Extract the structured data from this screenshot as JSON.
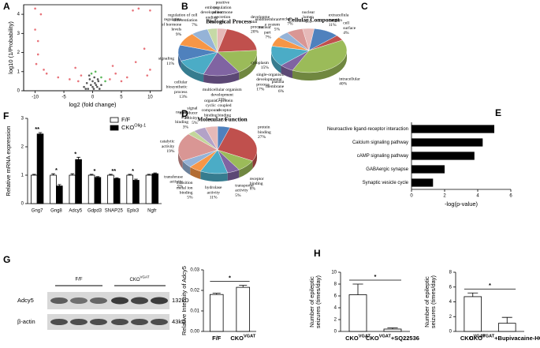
{
  "chart_data": [
    {
      "type": "scatter",
      "panel": "A",
      "xlabel": "log2 (fold change)",
      "ylabel": "log10 (1/Probability)",
      "xlim": [
        -12,
        12
      ],
      "xticks": [
        -10,
        -5,
        0,
        5,
        10
      ],
      "ylim": [
        0,
        4.5
      ],
      "yticks": [
        0,
        1,
        2,
        3,
        4
      ],
      "series": [
        {
          "color": "#e8737a",
          "x": [
            -10,
            -10,
            -9.5,
            -9.5,
            -9.8,
            -9,
            -8.5,
            -8,
            -6,
            -4,
            -3,
            -2.5,
            -2,
            3,
            3.5,
            4,
            5,
            6,
            7,
            7.5,
            8,
            9,
            9.5,
            10,
            10
          ],
          "values": [
            4.3,
            3.2,
            2.6,
            1.9,
            1.4,
            4.0,
            1.1,
            0.9,
            0.7,
            0.6,
            1.2,
            0.5,
            0.8,
            0.6,
            1.3,
            0.9,
            0.5,
            0.7,
            4.2,
            1.5,
            4.3,
            2.2,
            0.8,
            4.2,
            1.1
          ]
        },
        {
          "color": "#555555",
          "x": [
            -1.5,
            -1,
            -0.8,
            -0.5,
            -0.3,
            0,
            0,
            0.2,
            0.4,
            0.6,
            0.8,
            1,
            1.2,
            1.5,
            -1.2,
            0.3,
            -0.6,
            0.9
          ],
          "values": [
            0.2,
            0.4,
            0.1,
            0.6,
            0.3,
            0.2,
            0.5,
            0.1,
            0.4,
            0.3,
            0.2,
            0.5,
            0.1,
            0.3,
            0.1,
            0.7,
            0.8,
            0.6
          ]
        },
        {
          "color": "#5cb85c",
          "x": [
            0.5,
            1.5,
            -0.2,
            2.2
          ],
          "values": [
            1.0,
            0.7,
            0.9,
            0.5
          ]
        }
      ]
    },
    {
      "type": "pie",
      "panel": "B",
      "title": "Biological Process",
      "categories": [
        [
          "embryo",
          "development",
          "ending"
        ],
        [
          "positive",
          "regulation",
          "of hormone",
          "secretion"
        ],
        [
          "developme",
          "ntal",
          "process"
        ],
        [
          "single-organism",
          "developmental",
          "process"
        ],
        [
          "multicellular organism",
          "development"
        ],
        [
          "cellular",
          "biosynthetic",
          "process"
        ],
        [
          "signaling"
        ],
        [
          "regulation",
          "of hormone",
          "levels"
        ],
        [
          "regulation of cell",
          "differentiation"
        ]
      ],
      "values": [
        4,
        4,
        20,
        17,
        15,
        13,
        11,
        9,
        7
      ],
      "value_labels": [
        "4%",
        "4%",
        "20%",
        "17%",
        "15%",
        "13%",
        "11%",
        "9%",
        "7%"
      ],
      "colors": [
        "#c6d9a6",
        "#e6b9b8",
        "#c0504d",
        "#9bbb59",
        "#8064a2",
        "#4bacc6",
        "#4f81bd",
        "#f79646",
        "#95b3d7"
      ]
    },
    {
      "type": "pie",
      "panel": "C",
      "title": "Cellular Component",
      "categories": [
        [
          "nuclear",
          "lumen"
        ],
        [
          "extracellula",
          "r region"
        ],
        [
          "cell",
          "surface"
        ],
        [
          "intracellular"
        ],
        [
          "plasma",
          "membrane"
        ],
        [
          "cytoplasm"
        ],
        [
          "nuclear",
          "part"
        ],
        [
          "endomembran",
          "e system"
        ],
        [
          "nucleus"
        ]
      ],
      "values": [
        5,
        11,
        4,
        40,
        6,
        15,
        7,
        5,
        7
      ],
      "value_labels": [
        "5%",
        "11%",
        "4%",
        "40%",
        "6%",
        "15%",
        "7%",
        "5%",
        "7%"
      ],
      "colors": [
        "#e6b9b8",
        "#4f81bd",
        "#c0504d",
        "#9bbb59",
        "#8064a2",
        "#4bacc6",
        "#f79646",
        "#95b3d7",
        "#d99694"
      ]
    },
    {
      "type": "pie",
      "panel": "D",
      "title": "Molecular Function",
      "categories": [
        [
          "G-protein",
          "coupled",
          "receptor",
          "binding"
        ],
        [
          "protein",
          "binding"
        ],
        [
          "receptor",
          "binding"
        ],
        [
          "transporter",
          "activity"
        ],
        [
          "hydrolase",
          "activity"
        ],
        [
          "transition",
          "metal ion",
          "binding"
        ],
        [
          "transferase",
          "activity"
        ],
        [
          "catalytic",
          "activity"
        ],
        [
          "nucleic",
          "acid",
          "binding"
        ],
        [
          "signal",
          "transducer",
          "activity"
        ],
        [
          "organic",
          "cyclic",
          "compound",
          "binding"
        ]
      ],
      "values": [
        5,
        27,
        8,
        5,
        11,
        5,
        5,
        19,
        3,
        5,
        5
      ],
      "value_labels": [
        "5%",
        "27%",
        "8%",
        "5%",
        "11%",
        "5%",
        "5%",
        "19%",
        "3%",
        "5%",
        "5%"
      ],
      "colors": [
        "#4f81bd",
        "#c0504d",
        "#9bbb59",
        "#8064a2",
        "#4bacc6",
        "#f79646",
        "#95b3d7",
        "#d99694",
        "#c3d69b",
        "#b3a2c7",
        "#e6b9b8"
      ]
    },
    {
      "type": "barh",
      "panel": "E",
      "xlabel": "-log(p-value)",
      "color": "#000000",
      "categories": [
        "Neuroactive ligand-receptor interaction",
        "Calcium signaling pathway",
        "cAMP signaling pathway",
        "GABAergic synapse",
        "Synaptic vesicle cycle"
      ],
      "values": [
        5.0,
        4.3,
        3.8,
        2.0,
        1.3
      ],
      "xlim": [
        0,
        6
      ],
      "xticks": [
        0,
        2,
        4,
        6
      ]
    },
    {
      "type": "bar",
      "panel": "F",
      "ylabel": "Relative mRNA expression",
      "edgecolor": "#000000",
      "categories": [
        "Gng7",
        "Gng8",
        "Adcy5",
        "Gdpd3",
        "SNAP25",
        "Eplx3",
        "Ngfr"
      ],
      "ylim": [
        0,
        3
      ],
      "yticks": [
        0,
        1,
        2,
        3
      ],
      "series": [
        {
          "name": "F/F",
          "color": "#ffffff",
          "values": [
            1,
            1,
            1,
            1,
            1,
            1,
            1
          ],
          "errors": [
            0.03,
            0.05,
            0.05,
            0.03,
            0.03,
            0.03,
            0.03
          ]
        },
        {
          "name": {
            "base": "CKO",
            "sup": "Olig-1"
          },
          "color": "#000000",
          "values": [
            2.45,
            0.62,
            1.55,
            0.92,
            0.88,
            0.82,
            1.05
          ],
          "errors": [
            0.05,
            0.05,
            0.08,
            0.03,
            0.03,
            0.04,
            0.03
          ]
        }
      ],
      "stars": [
        "**",
        "*",
        "*",
        "*",
        "**",
        "*",
        null
      ]
    },
    {
      "type": "bar",
      "panel": "G",
      "ylabel": "Relative Intensity of Adcy5",
      "edgecolor": "#000000",
      "categories": [
        "F/F",
        {
          "base": "CKO",
          "sup": "VGAT"
        }
      ],
      "ylim": [
        0,
        0.03
      ],
      "yticks": [
        {
          "value": 0,
          "label": "0.00"
        },
        0.01,
        0.02,
        0.03
      ],
      "series": [
        {
          "color": "#ffffff",
          "values": [
            0.018,
            0.0215
          ],
          "errors": [
            0.0006,
            0.001
          ]
        }
      ],
      "annotation": "*"
    },
    {
      "type": "bar",
      "panel": "H",
      "ylabel": [
        "Number of epileptic",
        "seizures (times/day)"
      ],
      "edgecolor": "#000000",
      "categories": [
        {
          "base": "CKO",
          "sup": "VGAT"
        },
        {
          "base": "CKO",
          "sup": "VGAT",
          "after": "+SQ22536"
        }
      ],
      "ylim": [
        0,
        10
      ],
      "yticks": [
        0,
        2,
        4,
        6,
        8,
        10
      ],
      "series": [
        {
          "color": "#ffffff",
          "values": [
            6.2,
            0.4
          ],
          "errors": [
            1.8,
            0.2
          ]
        }
      ],
      "annotation": "*"
    },
    {
      "type": "bar",
      "ylabel": [
        "Number of epileptic",
        "seizures (times/day)"
      ],
      "edgecolor": "#000000",
      "categories": [
        {
          "base": "CKO",
          "sup": "VGAT"
        },
        {
          "base": "CKO",
          "sup": "VGAT",
          "after": "+Bupivacaine-HCl"
        }
      ],
      "ylim": [
        0,
        8
      ],
      "yticks": [
        0,
        2,
        4,
        6,
        8
      ],
      "series": [
        {
          "color": "#ffffff",
          "values": [
            4.7,
            1.1
          ],
          "errors": [
            0.5,
            0.8
          ]
        }
      ],
      "annotation": "*"
    }
  ],
  "blot": {
    "lanes": [
      "F/F",
      {
        "base": "CKO",
        "sup": "VGAT"
      }
    ],
    "bands": [
      "Adcy5",
      "β-actin"
    ],
    "sizes": [
      "132kD",
      "43kD"
    ]
  }
}
